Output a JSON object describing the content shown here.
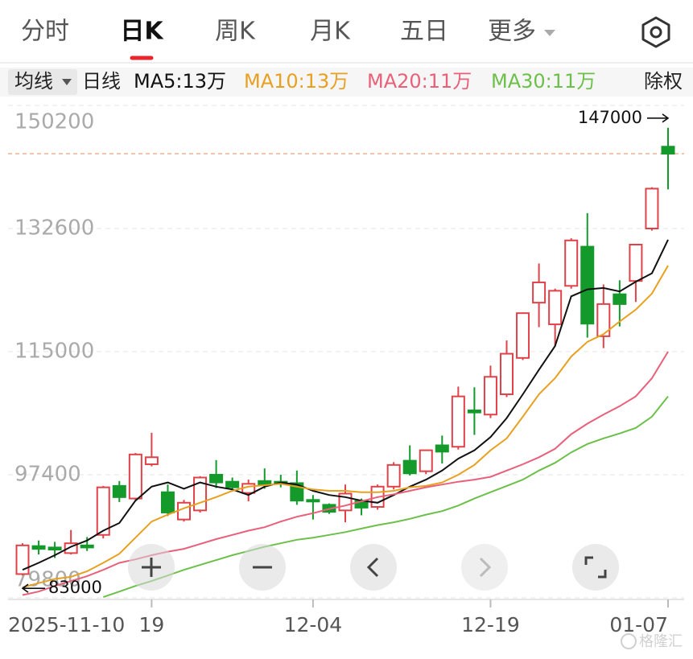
{
  "tabs": {
    "items": [
      "分时",
      "日K",
      "周K",
      "月K",
      "五日",
      "更多"
    ],
    "selected": 1
  },
  "indicator_bar": {
    "ma_selector": "均线",
    "period": "日线",
    "adjust": "除权"
  },
  "watermark": "格隆汇",
  "chart_data": {
    "type": "candlestick",
    "categories": [
      "2025-11-10",
      null,
      null,
      null,
      null,
      null,
      null,
      null,
      "19",
      null,
      null,
      null,
      null,
      null,
      null,
      null,
      null,
      null,
      "12-04",
      null,
      null,
      null,
      null,
      null,
      null,
      null,
      null,
      null,
      null,
      "12-19",
      null,
      null,
      null,
      null,
      null,
      null,
      null,
      null,
      null,
      null,
      "01-07"
    ],
    "open": [
      83200,
      87200,
      87000,
      86200,
      87300,
      88800,
      95800,
      94000,
      98900,
      94900,
      91000,
      92300,
      97400,
      96400,
      94800,
      96500,
      96400,
      96200,
      93800,
      93100,
      92300,
      93700,
      92800,
      95700,
      99400,
      97900,
      101600,
      101400,
      106600,
      106000,
      108900,
      114100,
      122000,
      118900,
      124400,
      130000,
      117200,
      123200,
      125100,
      132600,
      144300
    ],
    "high": [
      87600,
      88000,
      87800,
      89500,
      88500,
      95800,
      96500,
      100500,
      103400,
      96000,
      93800,
      97200,
      99500,
      97000,
      96700,
      98300,
      97400,
      98000,
      94500,
      93300,
      96000,
      94000,
      96000,
      99200,
      101600,
      101000,
      103000,
      110000,
      109900,
      113000,
      116600,
      120600,
      127600,
      124000,
      131200,
      134800,
      124600,
      125200,
      130400,
      138500,
      147000
    ],
    "low": [
      83000,
      86000,
      85500,
      86000,
      86500,
      88300,
      93500,
      93800,
      98600,
      91500,
      90700,
      92000,
      95500,
      95000,
      93600,
      95400,
      95600,
      93100,
      91000,
      91800,
      90600,
      91600,
      92400,
      95300,
      97300,
      97500,
      99000,
      101000,
      103100,
      105500,
      108500,
      113800,
      118500,
      115800,
      124000,
      117000,
      115500,
      118600,
      122100,
      132300,
      138200
    ],
    "close": [
      87300,
      86800,
      86700,
      87600,
      87000,
      95600,
      94200,
      100300,
      99900,
      92000,
      93400,
      97000,
      96300,
      95600,
      96100,
      96000,
      96100,
      93700,
      93600,
      92100,
      94700,
      92700,
      95700,
      98800,
      97600,
      100900,
      100700,
      108600,
      106300,
      111400,
      114700,
      120500,
      124900,
      123700,
      130900,
      119000,
      121800,
      121800,
      130300,
      138300,
      143300
    ],
    "up_color": "#e0424a",
    "down_color": "#14992b",
    "ma_series": [
      {
        "name": "MA5:13万",
        "color": "#111111",
        "values": [
          83800,
          84800,
          85900,
          87100,
          88000,
          89400,
          90500,
          93700,
          95700,
          96300,
          95400,
          96300,
          95700,
          95300,
          94500,
          95700,
          96300,
          96000,
          95100,
          94500,
          94200,
          93700,
          93400,
          94500,
          95700,
          96700,
          98000,
          99700,
          100900,
          102800,
          105500,
          108900,
          112400,
          115800,
          122900,
          123900,
          124100,
          123600,
          125000,
          126200,
          131000
        ]
      },
      {
        "name": "MA10:13万",
        "color": "#e8a020",
        "values": [
          81300,
          81900,
          82500,
          82800,
          83600,
          84800,
          86100,
          88400,
          90700,
          91700,
          92600,
          93400,
          94200,
          95100,
          95700,
          95900,
          96100,
          95700,
          95300,
          95100,
          95100,
          94900,
          94900,
          95100,
          95600,
          95800,
          96300,
          97400,
          98800,
          100900,
          102600,
          105700,
          108900,
          111200,
          114300,
          116400,
          117500,
          119300,
          121000,
          123300,
          127300
        ]
      },
      {
        "name": "MA20:11万",
        "color": "#e8607a",
        "values": [
          80200,
          80700,
          81500,
          82200,
          82900,
          83800,
          84800,
          85300,
          85900,
          86400,
          86800,
          87500,
          88200,
          88800,
          89400,
          89900,
          90700,
          91400,
          91900,
          92500,
          93000,
          93600,
          94200,
          94600,
          95100,
          95600,
          96000,
          96400,
          96700,
          97100,
          98000,
          98900,
          99900,
          101100,
          103200,
          104700,
          106000,
          107200,
          108600,
          111200,
          115000
        ]
      },
      {
        "name": "MA30:11万",
        "color": "#6cc04a",
        "values": [
          null,
          null,
          null,
          null,
          null,
          79900,
          80700,
          81500,
          82200,
          83000,
          83800,
          84500,
          85200,
          85900,
          86500,
          87100,
          87600,
          88100,
          88400,
          88800,
          89200,
          89700,
          90200,
          90600,
          91100,
          91700,
          92200,
          93000,
          94000,
          94900,
          95800,
          96700,
          98000,
          99100,
          100600,
          101800,
          102600,
          103300,
          104100,
          105700,
          108600
        ]
      }
    ],
    "ylim": [
      79800,
      150200
    ],
    "yticks": [
      79800,
      97400,
      115000,
      132600,
      150200
    ],
    "grid": true,
    "high_label": 147000,
    "low_label": 83000
  }
}
